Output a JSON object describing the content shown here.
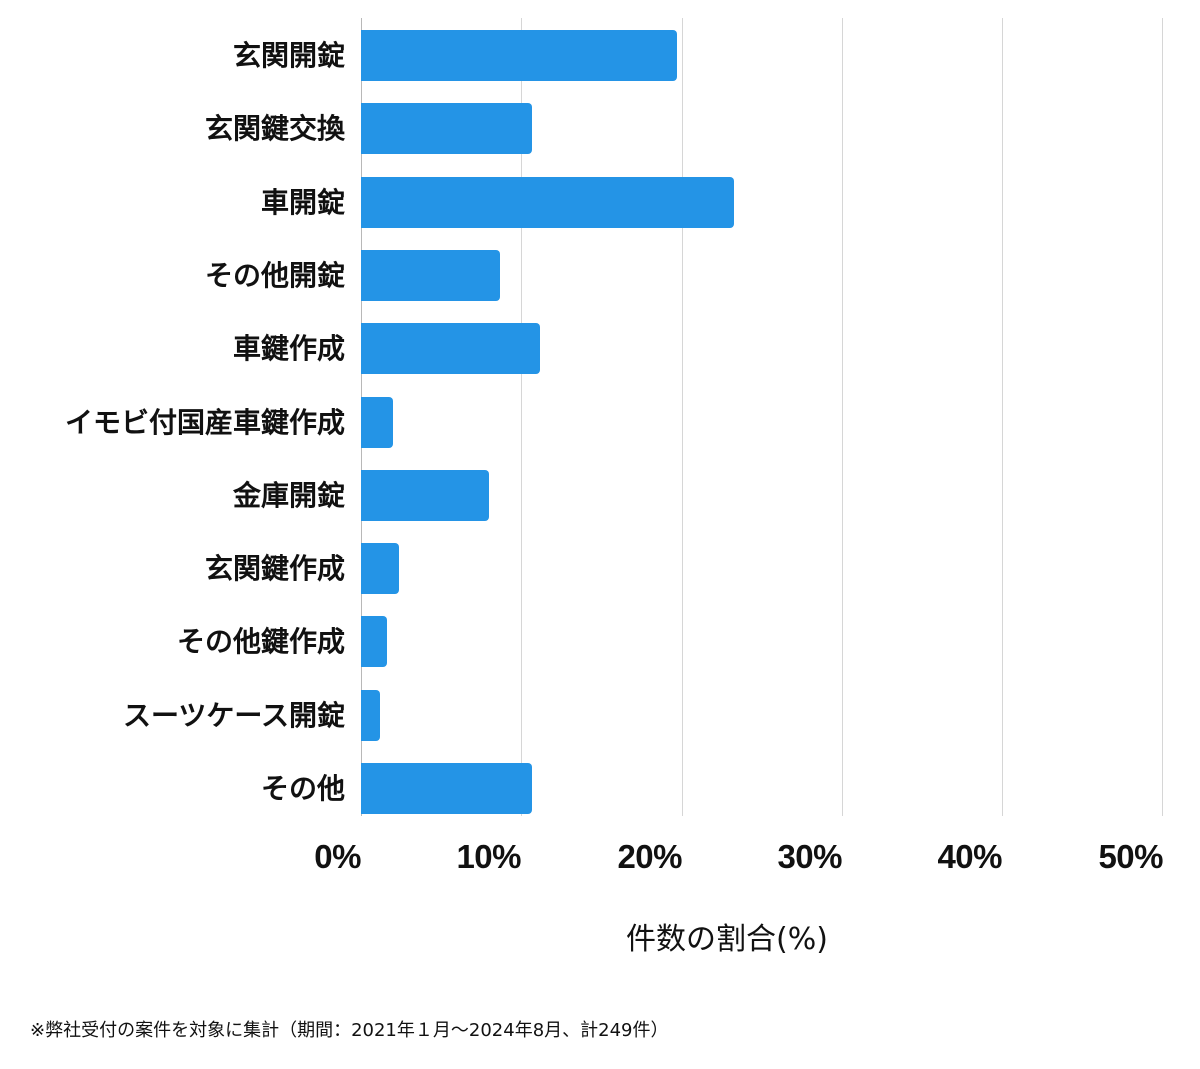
{
  "chart_data": {
    "type": "bar",
    "orientation": "horizontal",
    "title": "",
    "categories": [
      "玄関開錠",
      "玄関鍵交換",
      "車開錠",
      "その他開錠",
      "車鍵作成",
      "イモビ付国産車鍵作成",
      "金庫開錠",
      "玄関鍵作成",
      "その他鍵作成",
      "スーツケース開錠",
      "その他"
    ],
    "values": [
      19.7,
      10.7,
      23.3,
      8.7,
      11.2,
      2.0,
      8.0,
      2.4,
      1.6,
      1.2,
      10.7
    ],
    "xlabel": "件数の割合(%)",
    "ylabel": "",
    "xlim": [
      0,
      50
    ],
    "xticks": [
      "0%",
      "10%",
      "20%",
      "30%",
      "40%",
      "50%"
    ],
    "grid": "vertical",
    "legend": "none",
    "bar_color": "#2494e6"
  },
  "footnote": "※弊社受付の案件を対象に集計（期間：2021年１月〜2024年8月、計249件）"
}
